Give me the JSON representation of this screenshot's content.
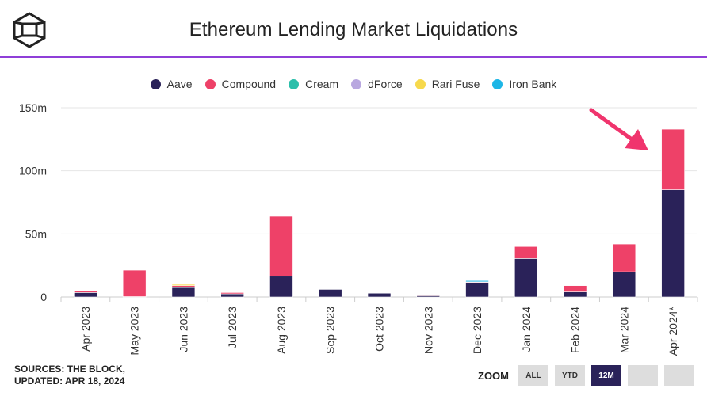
{
  "header": {
    "title": "Ethereum Lending Market Liquidations"
  },
  "colors": {
    "Aave": "#2a2259",
    "Compound": "#ee4168",
    "Cream": "#2cbfab",
    "dForce": "#b9a8e0",
    "Rari Fuse": "#f7d94c",
    "Iron Bank": "#1db6e6",
    "arrow": "#f0346d",
    "accent_line": "#8f3fd8"
  },
  "chart_data": {
    "type": "bar",
    "stacked": true,
    "title": "Ethereum Lending Market Liquidations",
    "categories": [
      "Apr 2023",
      "May 2023",
      "Jun 2023",
      "Jul 2023",
      "Aug 2023",
      "Sep 2023",
      "Oct 2023",
      "Nov 2023",
      "Dec 2023",
      "Jan 2024",
      "Feb 2024",
      "Mar 2024",
      "Apr 2024*"
    ],
    "series": [
      {
        "name": "Aave",
        "values": [
          3.5,
          0.3,
          7.5,
          2.5,
          16.5,
          6,
          3,
          1,
          11.5,
          30.5,
          4,
          20,
          85
        ]
      },
      {
        "name": "Compound",
        "values": [
          1.5,
          21,
          1.5,
          1,
          47.5,
          0,
          0,
          1,
          0.5,
          9.5,
          5,
          22,
          48
        ]
      },
      {
        "name": "Cream",
        "values": [
          0,
          0,
          0,
          0,
          0,
          0,
          0,
          0,
          0,
          0,
          0,
          0,
          0
        ]
      },
      {
        "name": "dForce",
        "values": [
          0,
          0,
          0,
          0,
          0,
          0,
          0,
          0,
          0,
          0,
          0,
          0,
          0
        ]
      },
      {
        "name": "Rari Fuse",
        "values": [
          0,
          0,
          1,
          0,
          0,
          0,
          0,
          0,
          0,
          0,
          0,
          0,
          0
        ]
      },
      {
        "name": "Iron Bank",
        "values": [
          0,
          0,
          0,
          0,
          0,
          0,
          0,
          0,
          1,
          0,
          0,
          0,
          0
        ]
      }
    ],
    "yticks": [
      "0",
      "50m",
      "100m",
      "150m"
    ],
    "ylim": [
      0,
      150
    ],
    "yunit": "millions USD",
    "grid": true,
    "legend": "top-center",
    "annotation": "pink arrow pointing at Apr 2024* bar"
  },
  "footer": {
    "sources_line1": "SOURCES: THE BLOCK,",
    "sources_line2": "UPDATED: APR 18, 2024"
  },
  "zoom": {
    "label": "ZOOM",
    "buttons": [
      "ALL",
      "YTD",
      "12M",
      "",
      ""
    ],
    "active": "12M"
  }
}
